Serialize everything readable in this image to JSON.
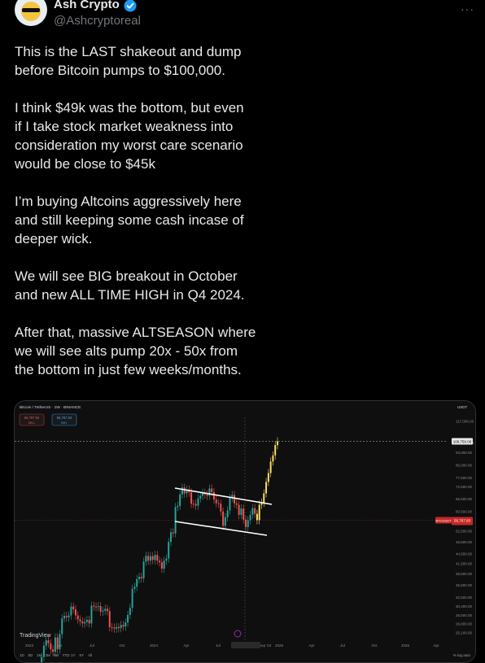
{
  "author": {
    "name": "Ash Crypto",
    "handle": "@Ashcryptoreal"
  },
  "more_label": "···",
  "tweet": {
    "paragraphs": [
      "This is the LAST shakeout and dump\nbefore Bitcoin pumps to $100,000.",
      "I think $49k was the bottom, but even\nif I take stock market weakness into\nconsideration my worst care scenario\nwould be close to $45k",
      "I’m buying Altcoins aggressively here\nand still keeping some cash incase of\ndeeper wick.",
      "We will see BIG breakout in October\nand new ALL TIME HIGH in Q4 2024.",
      "After that, massive ALTSEASON where\nwe will see alts pump 20x - 50x from\nthe bottom in just few weeks/months."
    ]
  },
  "chart_data": {
    "type": "candlestick",
    "title": "Bitcoin / TetherUS · 1W · BINANCE",
    "currency": "USDT",
    "sell_price": "56,767.92",
    "buy_price": "56,767.93",
    "sell_label": "SELL",
    "buy_label": "BUY",
    "current_label": "BTCUSDT",
    "current_value": "56,767.93",
    "target_value": "100,750.00",
    "y_ticks": [
      "117,000.00",
      "100,000.00",
      "93,000.00",
      "85,000.00",
      "77,500.00",
      "72,500.00",
      "66,500.00",
      "60,500.00",
      "52,500.00",
      "48,500.00",
      "44,500.00",
      "41,500.00",
      "38,500.00",
      "35,500.00",
      "32,500.00",
      "30,400.00",
      "28,500.00",
      "26,800.00",
      "25,100.00"
    ],
    "x_ticks": [
      "2023",
      "Apr",
      "Jul",
      "Oct",
      "2024",
      "Apr",
      "Jul",
      "Nov 21 Sep '24",
      "2025",
      "Apr",
      "Jul",
      "Oct",
      "2026",
      "Apr"
    ],
    "ylim": [
      24000,
      120000
    ],
    "weekly_closes": [
      16600,
      17100,
      17500,
      18500,
      21000,
      22800,
      23700,
      23200,
      22200,
      21800,
      24200,
      22200,
      24800,
      27800,
      28300,
      28000,
      28400,
      30300,
      29700,
      28400,
      27600,
      27200,
      26800,
      27100,
      27500,
      26800,
      30500,
      30300,
      30200,
      30400,
      29200,
      29400,
      29800,
      29300,
      26100,
      26000,
      25800,
      26100,
      25900,
      26500,
      26200,
      27000,
      28500,
      30000,
      34500,
      35000,
      37000,
      37600,
      37200,
      42000,
      43800,
      42300,
      43700,
      42500,
      44100,
      42300,
      41800,
      39900,
      42300,
      43000,
      48500,
      52000,
      51600,
      62500,
      63000,
      68500,
      72000,
      69000,
      71000,
      69500,
      64000,
      63900,
      63100,
      66500,
      67800,
      69300,
      68500,
      67800,
      71500,
      69700,
      66000,
      64300,
      64000,
      60500,
      54500,
      58000,
      61000,
      66700,
      68200,
      64200,
      63500,
      59000,
      61800,
      57000,
      54000,
      56800,
      59000,
      62000,
      59500,
      56800,
      63500,
      64500,
      69000,
      75000,
      80000,
      87000,
      91000,
      98000,
      100750
    ],
    "channel_upper": [
      [
        214,
        599
      ],
      [
        333,
        619
      ]
    ],
    "channel_lower": [
      [
        214,
        640
      ],
      [
        327,
        657
      ]
    ],
    "branding": "TradingView",
    "timeframes": [
      "1D",
      "5D",
      "1M",
      "3M",
      "6M",
      "YTD",
      "1Y",
      "5Y",
      "All"
    ],
    "bottom_right": "% log auto"
  },
  "colors": {
    "up": "#26a69a",
    "down": "#ef5350",
    "projection": "#ffe066",
    "background": "#0f0f0f"
  }
}
